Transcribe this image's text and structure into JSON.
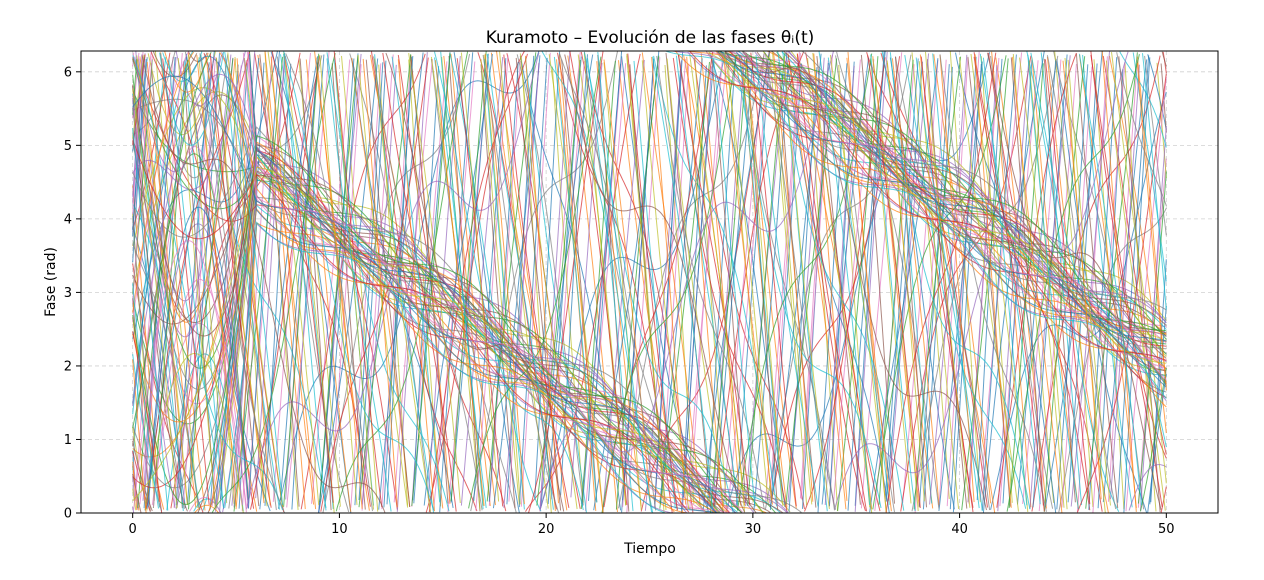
{
  "chart_data": {
    "type": "line",
    "title": "Kuramoto – Evolución de las fases θᵢ(t)",
    "xlabel": "Tiempo",
    "ylabel": "Fase (rad)",
    "xlim": [
      -2.5,
      52.5
    ],
    "ylim": [
      0,
      6.283
    ],
    "x_ticks": [
      0,
      10,
      20,
      30,
      40,
      50
    ],
    "y_ticks": [
      0,
      1,
      2,
      3,
      4,
      5,
      6
    ],
    "grid": true,
    "line_opacity": 0.7,
    "series_count": 80,
    "colors": [
      "#1f77b4",
      "#ff7f0e",
      "#2ca02c",
      "#d62728",
      "#9467bd",
      "#8c564b",
      "#e377c2",
      "#7f7f7f",
      "#bcbd22",
      "#17becf"
    ],
    "model": {
      "t_start": 0,
      "t_end": 50,
      "phase_range": [
        0,
        6.283
      ],
      "cluster_drift_rate": -0.2,
      "mean_frequency_spread": 1.5
    }
  }
}
